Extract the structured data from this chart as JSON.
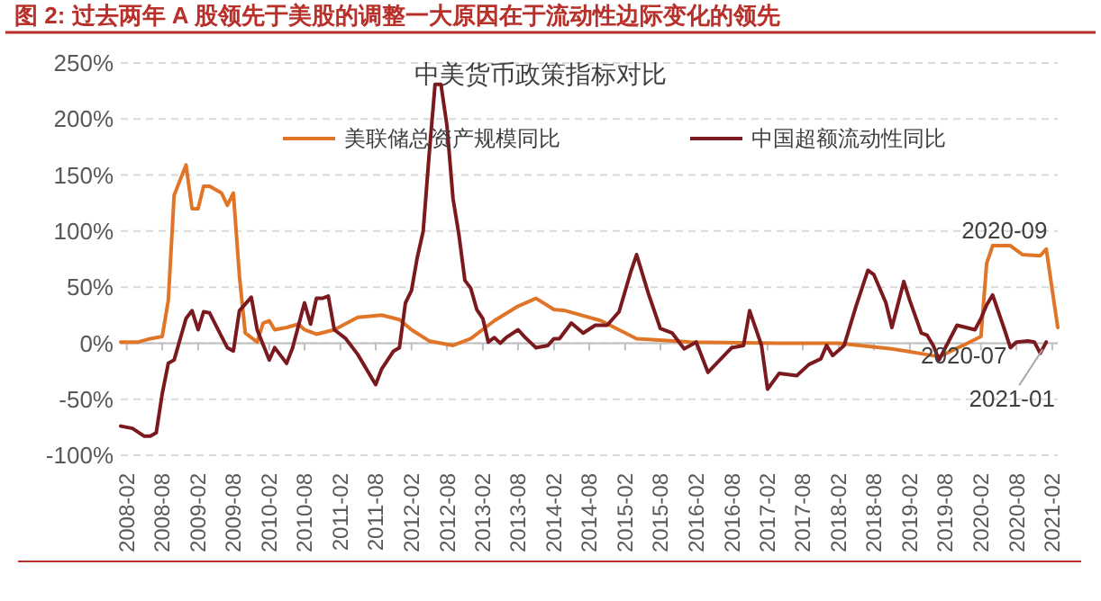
{
  "chart_data": {
    "type": "line",
    "title": "图 2:  过去两年 A 股领先于美股的调整一大原因在于流动性边际变化的领先",
    "subtitle": "中美货币政策指标对比",
    "xlim": [
      "2008-01",
      "2021-03"
    ],
    "xticks": [
      "2008-02",
      "2008-08",
      "2009-02",
      "2009-08",
      "2010-02",
      "2010-08",
      "2011-02",
      "2011-08",
      "2012-02",
      "2012-08",
      "2013-02",
      "2013-08",
      "2014-02",
      "2014-08",
      "2015-02",
      "2015-08",
      "2016-02",
      "2016-08",
      "2017-02",
      "2017-08",
      "2018-02",
      "2018-08",
      "2019-02",
      "2019-08",
      "2020-02",
      "2020-08",
      "2021-02"
    ],
    "ylim": [
      -100,
      250
    ],
    "yticks": [
      {
        "value": -100,
        "label": "-100%"
      },
      {
        "value": -50,
        "label": "-50%"
      },
      {
        "value": 0,
        "label": "0%"
      },
      {
        "value": 50,
        "label": "50%"
      },
      {
        "value": 100,
        "label": "100%"
      },
      {
        "value": 150,
        "label": "150%"
      },
      {
        "value": 200,
        "label": "200%"
      },
      {
        "value": 250,
        "label": "250%"
      }
    ],
    "grid": "y",
    "legend": "top",
    "marker": "none",
    "line_style": "solid",
    "series": [
      {
        "name": "美联储总资产规模同比",
        "color": "#e07528",
        "x": [
          "2008-01",
          "2008-04",
          "2008-06",
          "2008-08",
          "2008-09",
          "2008-10",
          "2008-12",
          "2009-01",
          "2009-02",
          "2009-03",
          "2009-04",
          "2009-06",
          "2009-07",
          "2009-08",
          "2009-09",
          "2009-10",
          "2009-12",
          "2010-01",
          "2010-02",
          "2010-03",
          "2010-05",
          "2010-07",
          "2010-08",
          "2010-10",
          "2011-01",
          "2011-05",
          "2011-09",
          "2011-12",
          "2012-02",
          "2012-05",
          "2012-09",
          "2012-12",
          "2013-04",
          "2013-08",
          "2013-11",
          "2014-02",
          "2014-04",
          "2014-10",
          "2015-04",
          "2016-01",
          "2017-04",
          "2018-02",
          "2018-11",
          "2019-07",
          "2019-11",
          "2020-02",
          "2020-03",
          "2020-04",
          "2020-07",
          "2020-09",
          "2020-12",
          "2021-01",
          "2021-03"
        ],
        "values": [
          1,
          1,
          4,
          6,
          38,
          132,
          159,
          120,
          120,
          140,
          140,
          134,
          123,
          134,
          60,
          9,
          1,
          18,
          20,
          12,
          14,
          17,
          12,
          8,
          12,
          23,
          25,
          21,
          12,
          2,
          -2,
          4,
          20,
          33,
          40,
          30,
          29,
          20,
          4,
          1,
          0,
          0,
          -5,
          -12,
          -2,
          6,
          71,
          87,
          87,
          79,
          78,
          84,
          14
        ]
      },
      {
        "name": "中国超额流动性同比",
        "color": "#7b1a1e",
        "x": [
          "2008-01",
          "2008-03",
          "2008-05",
          "2008-06",
          "2008-07",
          "2008-08",
          "2008-09",
          "2008-10",
          "2008-12",
          "2009-01",
          "2009-02",
          "2009-03",
          "2009-04",
          "2009-06",
          "2009-07",
          "2009-08",
          "2009-09",
          "2009-11",
          "2009-12",
          "2010-02",
          "2010-03",
          "2010-05",
          "2010-06",
          "2010-08",
          "2010-09",
          "2010-10",
          "2010-11",
          "2010-12",
          "2011-01",
          "2011-03",
          "2011-05",
          "2011-08",
          "2011-09",
          "2011-11",
          "2011-12",
          "2012-01",
          "2012-02",
          "2012-03",
          "2012-04",
          "2012-05",
          "2012-06",
          "2012-07",
          "2012-08",
          "2012-09",
          "2012-10",
          "2012-11",
          "2012-12",
          "2013-01",
          "2013-02",
          "2013-03",
          "2013-04",
          "2013-05",
          "2013-06",
          "2013-08",
          "2013-09",
          "2013-10",
          "2013-11",
          "2014-01",
          "2014-02",
          "2014-03",
          "2014-05",
          "2014-07",
          "2014-09",
          "2014-11",
          "2015-01",
          "2015-03",
          "2015-04",
          "2015-06",
          "2015-08",
          "2015-10",
          "2015-12",
          "2016-02",
          "2016-04",
          "2016-06",
          "2016-08",
          "2016-10",
          "2016-11",
          "2017-01",
          "2017-02",
          "2017-04",
          "2017-07",
          "2017-09",
          "2017-11",
          "2017-12",
          "2018-01",
          "2018-03",
          "2018-05",
          "2018-07",
          "2018-08",
          "2018-10",
          "2018-11",
          "2019-01",
          "2019-02",
          "2019-04",
          "2019-05",
          "2019-06",
          "2019-07",
          "2019-10",
          "2020-01",
          "2020-02",
          "2020-03",
          "2020-04",
          "2020-06",
          "2020-07",
          "2020-08",
          "2020-10",
          "2020-11",
          "2020-12",
          "2021-01"
        ],
        "values": [
          -74,
          -76,
          -83,
          -83,
          -80,
          -45,
          -18,
          -15,
          22,
          29,
          12,
          28,
          27,
          6,
          -4,
          -7,
          29,
          41,
          12,
          -15,
          -4,
          -18,
          -4,
          36,
          17,
          40,
          40,
          42,
          12,
          4,
          -10,
          -37,
          -23,
          -7,
          -4,
          36,
          47,
          76,
          100,
          167,
          231,
          231,
          194,
          129,
          97,
          56,
          49,
          30,
          22,
          1,
          5,
          0,
          5,
          12,
          6,
          1,
          -4,
          -2,
          4,
          4,
          18,
          9,
          16,
          16,
          28,
          63,
          79,
          44,
          13,
          9,
          -5,
          1,
          -26,
          -15,
          -4,
          -2,
          29,
          -2,
          -41,
          -27,
          -29,
          -19,
          -14,
          -2,
          -11,
          -2,
          33,
          65,
          61,
          36,
          14,
          55,
          38,
          9,
          7,
          -2,
          -15,
          16,
          12,
          22,
          34,
          43,
          12,
          -4,
          1,
          2,
          1,
          -9,
          1
        ]
      }
    ],
    "annotations": [
      {
        "text": "2020-09",
        "x": "2020-09",
        "y": 79
      },
      {
        "text": "2020-07",
        "x": "2020-07",
        "y": -4
      },
      {
        "text": "2021-01",
        "x": "2021-01",
        "y": 1
      }
    ]
  }
}
